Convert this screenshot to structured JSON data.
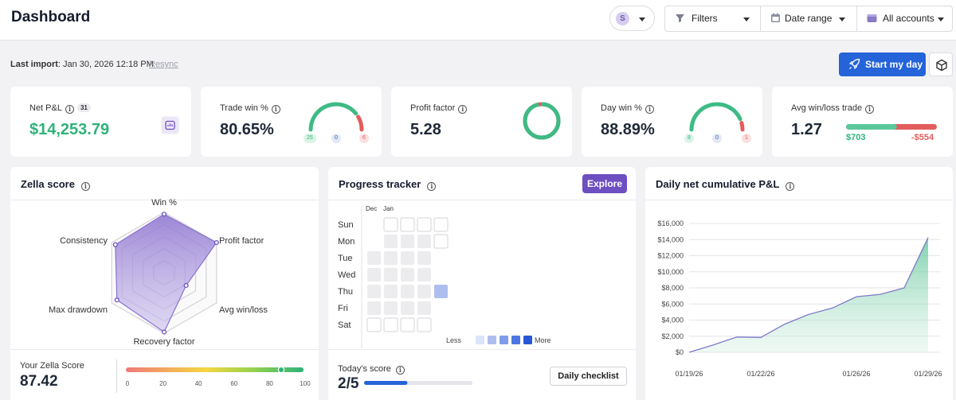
{
  "header": {
    "title": "Dashboard",
    "avatar_initial": "S",
    "filters_label": "Filters",
    "date_range_label": "Date range",
    "accounts_label": "All accounts"
  },
  "subheader": {
    "last_import_label": "Last import",
    "last_import_value": ": Jan 30, 2026 12:18 PM",
    "resync_label": "Resync",
    "start_button_label": "Start my day"
  },
  "stats": {
    "net_pnl": {
      "label": "Net P&L",
      "badge": "31",
      "value": "$14,253.79"
    },
    "trade_win": {
      "label": "Trade win %",
      "value": "80.65%",
      "wins": "25",
      "breakeven": "0",
      "losses": "6",
      "win_fraction": 0.8065
    },
    "profit_factor": {
      "label": "Profit factor",
      "value": "5.28",
      "ring_fraction": 0.97
    },
    "day_win": {
      "label": "Day win %",
      "value": "88.89%",
      "wins": "8",
      "breakeven": "0",
      "losses": "1",
      "win_fraction": 0.8889
    },
    "avg_win_loss": {
      "label": "Avg win/loss trade",
      "value": "1.27",
      "avg_win": "$703",
      "avg_loss": "-$554",
      "win_share": 0.559
    }
  },
  "zella": {
    "title": "Zella score",
    "axes": [
      "Win %",
      "Profit factor",
      "Avg win/loss",
      "Recovery factor",
      "Max drawdown",
      "Consistency"
    ],
    "values": [
      0.97,
      1.0,
      0.42,
      0.98,
      0.9,
      0.93
    ],
    "score_label": "Your Zella Score",
    "score_value": "87.42",
    "score_fraction": 0.8742,
    "scale_ticks": [
      "0",
      "20",
      "40",
      "60",
      "80",
      "100"
    ]
  },
  "progress": {
    "title": "Progress tracker",
    "explore_label": "Explore",
    "months": [
      "Dec",
      "Jan"
    ],
    "days": [
      "Sun",
      "Mon",
      "Tue",
      "Wed",
      "Thu",
      "Fri",
      "Sat"
    ],
    "legend_less": "Less",
    "legend_more": "More",
    "today_label": "Today's score",
    "today_value": "2/5",
    "today_fraction": 0.4,
    "checklist_label": "Daily checklist"
  },
  "colors": {
    "accent": "#2563d9",
    "purple": "#6d4fc2",
    "green": "#2fb37a",
    "red": "#e35d5d",
    "blue_cell": "#aebfef"
  },
  "chart_data": {
    "type": "area",
    "title": "Daily net cumulative P&L",
    "x": [
      "01/19/26",
      "01/20/26",
      "01/21/26",
      "01/22/26",
      "01/23/26",
      "01/24/26",
      "01/25/26",
      "01/26/26",
      "01/27/26",
      "01/28/26",
      "01/29/26"
    ],
    "values": [
      0,
      900,
      1900,
      1850,
      3500,
      4700,
      5500,
      6900,
      7200,
      8000,
      14253.79
    ],
    "x_tick_labels": [
      "01/19/26",
      "01/22/26",
      "01/26/26",
      "01/29/26"
    ],
    "y_tick_labels": [
      "$0",
      "$2,000",
      "$4,000",
      "$6,000",
      "$8,000",
      "$10,000",
      "$12,000",
      "$14,000",
      "$16,000"
    ],
    "ylim": [
      0,
      16000
    ],
    "grid": true
  }
}
